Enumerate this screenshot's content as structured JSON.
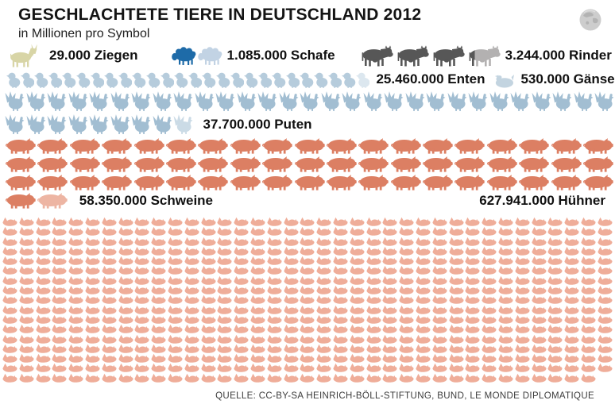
{
  "header": {
    "title": "GESCHLACHTETE TIERE IN DEUTSCHLAND 2012",
    "subtitle": "in Millionen pro Symbol"
  },
  "footer": {
    "source": "QUELLE: CC-BY-SA HEINRICH-BÖLL-STIFTUNG, BUND, LE MONDE DIPLOMATIQUE"
  },
  "chart_data": {
    "type": "pictogram",
    "title": "Geschlachtete Tiere in Deutschland 2012",
    "unit_per_symbol": "1 Million Tiere",
    "series": [
      {
        "id": "ziegen",
        "name": "Ziegen",
        "label": "29.000 Ziegen",
        "value": 29000,
        "millions": 0.029,
        "icon": "goat",
        "icon_count": 1,
        "partial_last": false,
        "color": "#d8d5a6"
      },
      {
        "id": "schafe",
        "name": "Schafe",
        "label": "1.085.000 Schafe",
        "value": 1085000,
        "millions": 1.085,
        "icon": "sheep",
        "icon_count": 2,
        "partial_last": true,
        "color": "#1e6ba8",
        "partial_color": "#c2d3e4"
      },
      {
        "id": "rinder",
        "name": "Rinder",
        "label": "3.244.000 Rinder",
        "value": 3244000,
        "millions": 3.244,
        "icon": "cow",
        "icon_count": 4,
        "partial_last": true,
        "partial_style": "split",
        "partial_fraction": 0.244,
        "color": "#575757",
        "partial_color": "#b3b1b1"
      },
      {
        "id": "enten",
        "name": "Enten",
        "label": "25.460.000 Enten",
        "value": 25460000,
        "millions": 25.46,
        "icon": "duck",
        "icon_count": 26,
        "partial_last": true,
        "color": "#b6ccdc",
        "partial_color": "#dce7ef"
      },
      {
        "id": "gaense",
        "name": "Gänse",
        "label": "530.000 Gänse",
        "value": 530000,
        "millions": 0.53,
        "icon": "goose",
        "icon_count": 1,
        "partial_last": false,
        "color": "#c3d4e0"
      },
      {
        "id": "puten",
        "name": "Puten",
        "label": "37.700.000 Puten",
        "value": 37700000,
        "millions": 37.7,
        "icon": "turkey",
        "icon_count": 38,
        "partial_last": true,
        "color": "#a2bed2",
        "partial_color": "#cbdbe6"
      },
      {
        "id": "schweine",
        "name": "Schweine",
        "label": "58.350.000 Schweine",
        "value": 58350000,
        "millions": 58.35,
        "icon": "pig",
        "icon_count": 59,
        "partial_last": true,
        "color": "#dc7f63",
        "partial_color": "#edb5a3"
      },
      {
        "id": "huehner",
        "name": "Hühner",
        "label": "627.941.000 Hühner",
        "value": 627941000,
        "millions": 627.941,
        "icon": "hen",
        "icon_count": 628,
        "partial_last": false,
        "color": "#efad99"
      }
    ]
  }
}
